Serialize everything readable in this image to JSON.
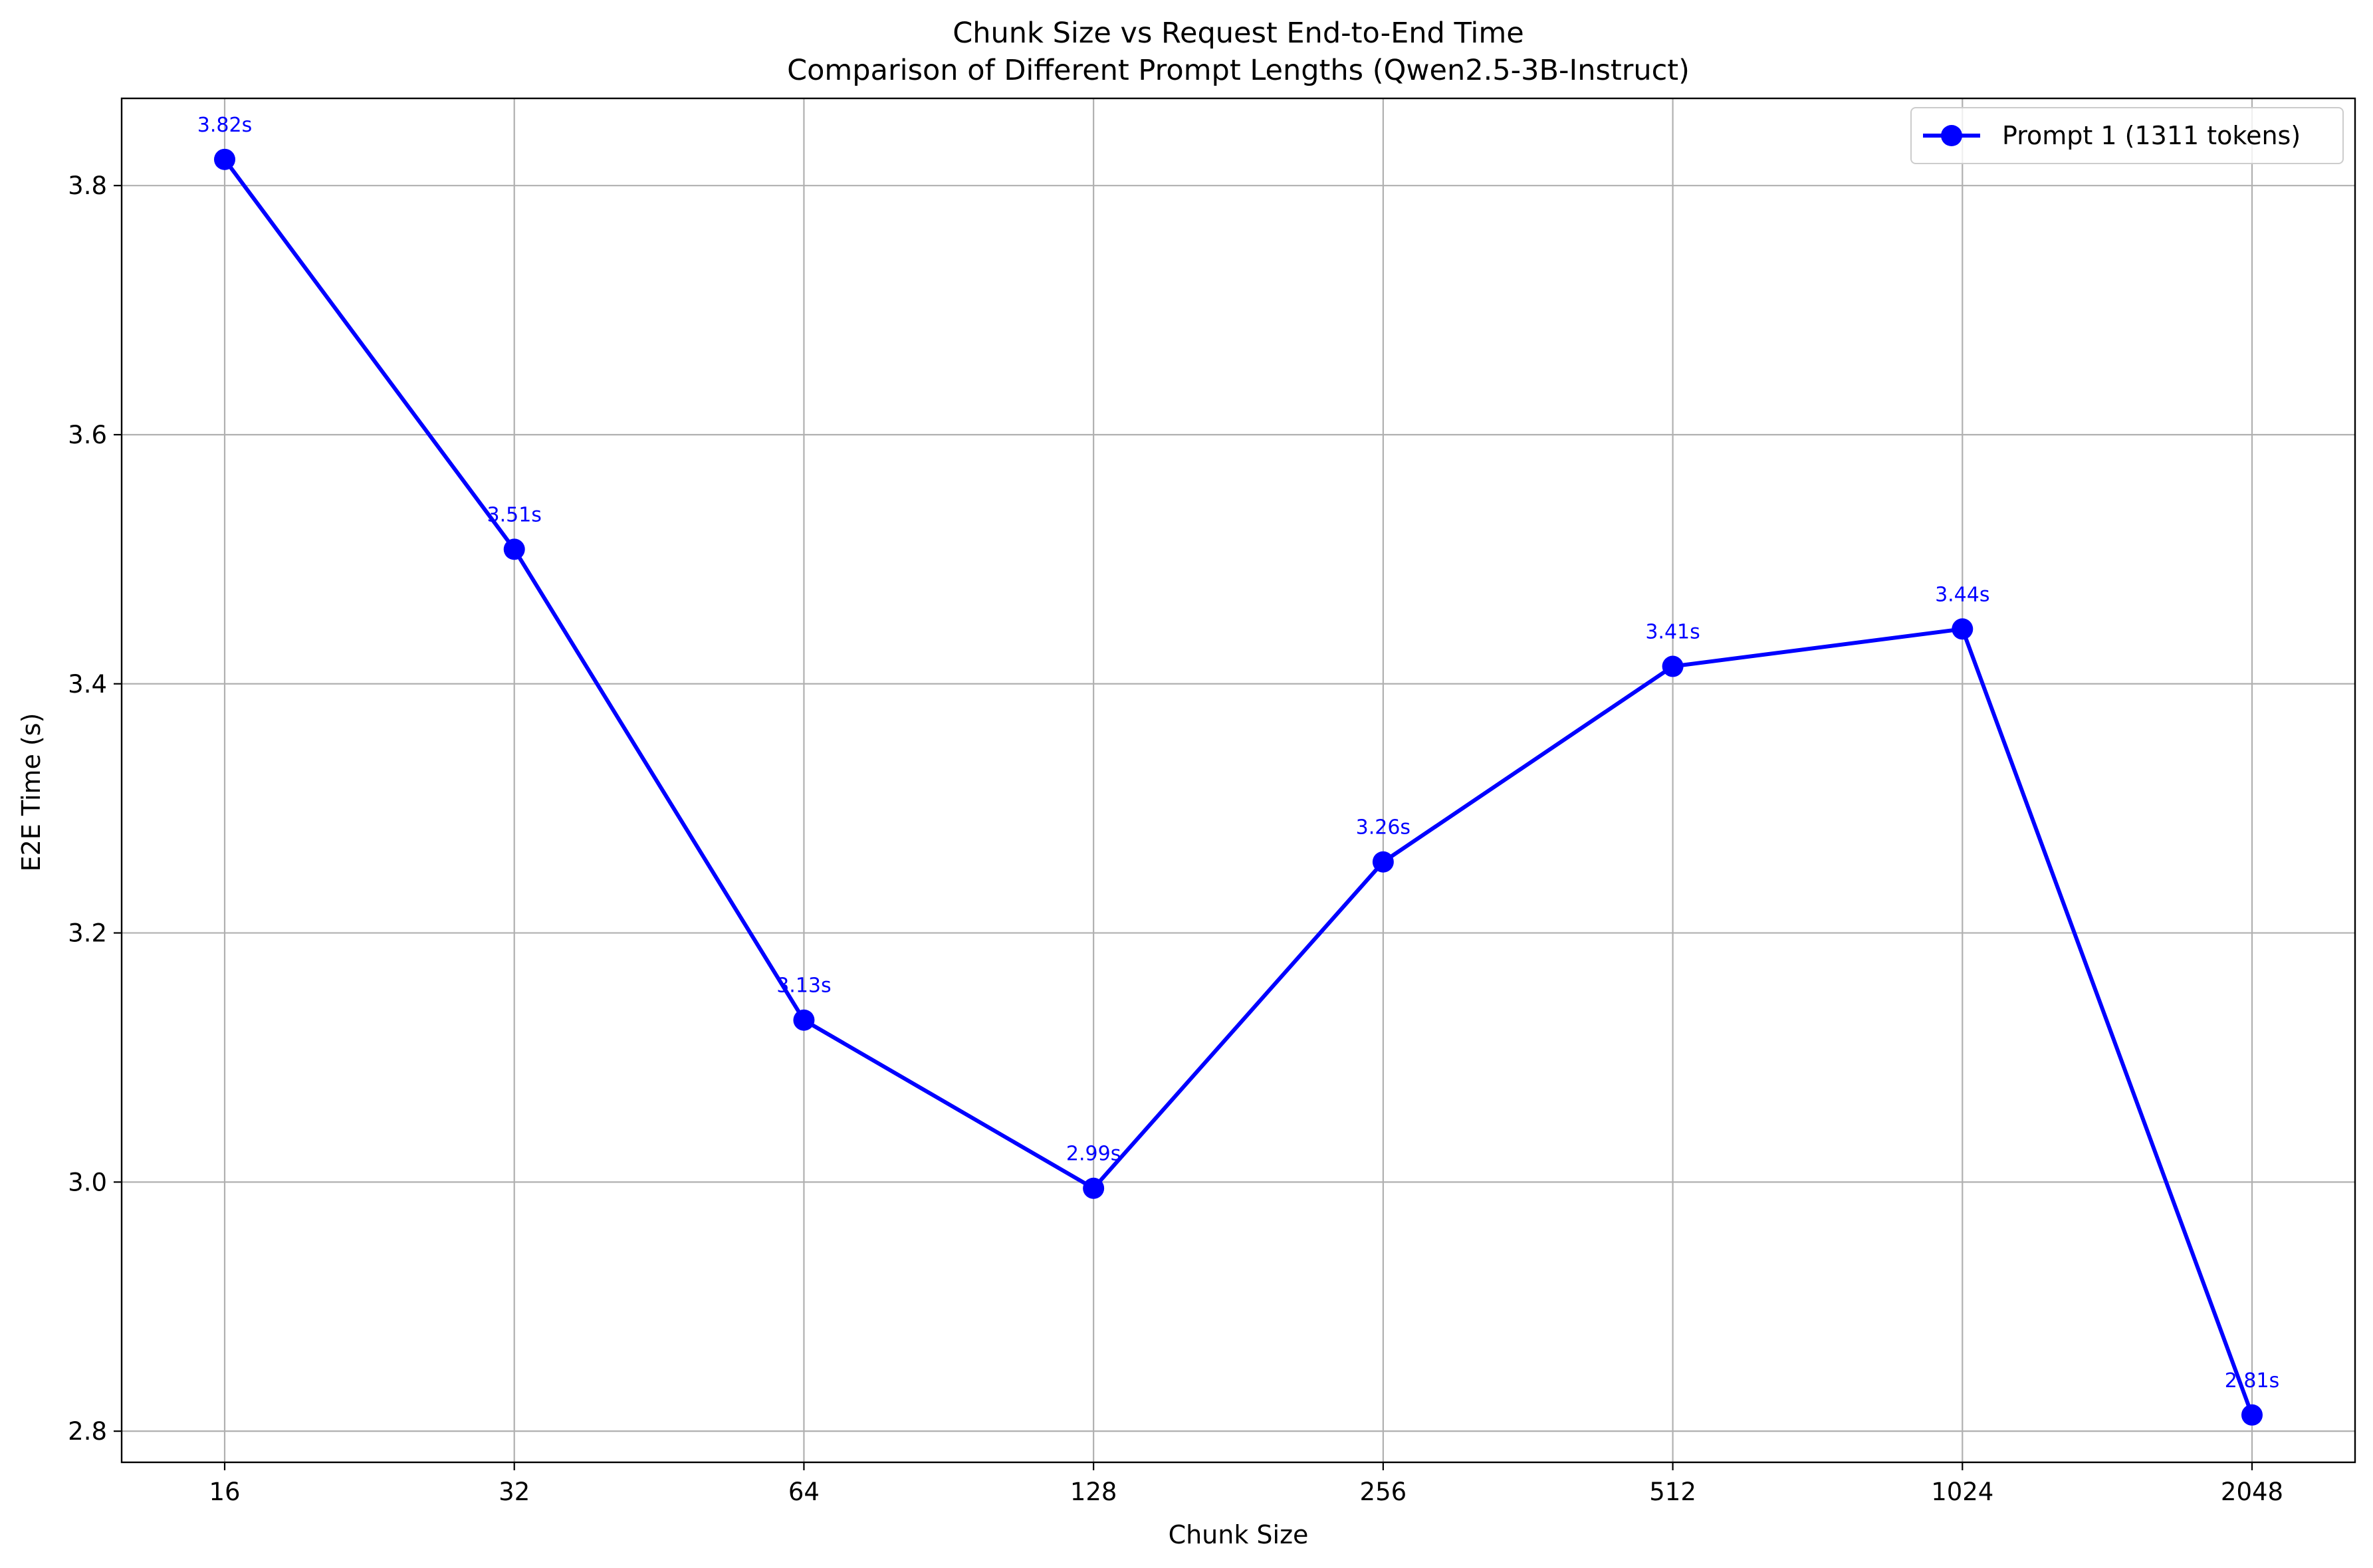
{
  "chart_data": {
    "type": "line",
    "title": "Chunk Size vs Request End-to-End Time",
    "subtitle": "Comparison of Different Prompt Lengths (Qwen2.5-3B-Instruct)",
    "xlabel": "Chunk Size",
    "ylabel": "E2E Time (s)",
    "categories": [
      "16",
      "32",
      "64",
      "128",
      "256",
      "512",
      "1024",
      "2048"
    ],
    "y_ticks": [
      "2.8",
      "3.0",
      "3.2",
      "3.4",
      "3.6",
      "3.8"
    ],
    "ylim": [
      2.775,
      3.87
    ],
    "grid": true,
    "legend_position": "top-right",
    "series": [
      {
        "name": "Prompt 1 (1311 tokens)",
        "color": "#0000ff",
        "marker": "circle",
        "values": [
          3.821,
          3.508,
          3.13,
          2.995,
          3.257,
          3.414,
          3.444,
          2.813
        ],
        "data_labels": [
          "3.82s",
          "3.51s",
          "3.13s",
          "2.99s",
          "3.26s",
          "3.41s",
          "3.44s",
          "2.81s"
        ]
      }
    ]
  }
}
